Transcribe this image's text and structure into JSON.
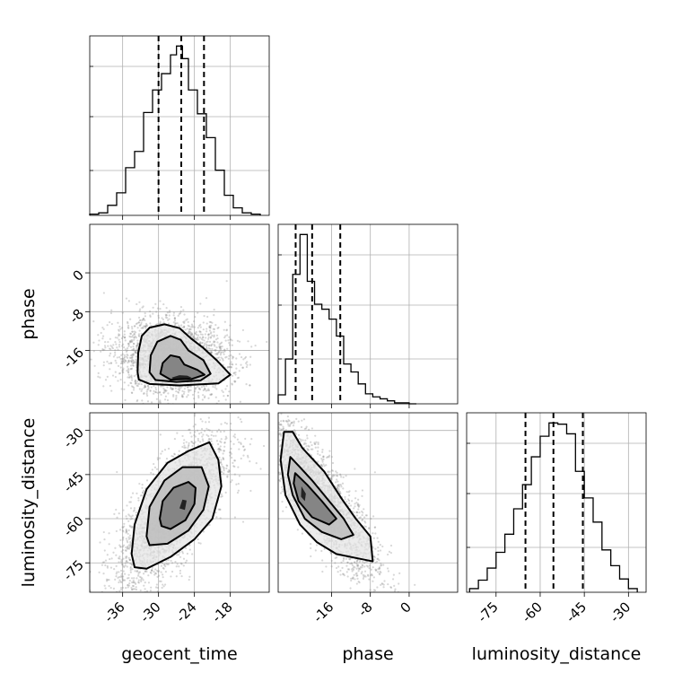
{
  "chart_data": {
    "type": "corner",
    "grid": true,
    "parameters": [
      {
        "name": "geocent_time",
        "range": [
          -41.5,
          -11.5
        ],
        "ticks": [
          -36,
          -30,
          -24,
          -18
        ],
        "quantiles": [
          -30.0,
          -26.2,
          -22.4
        ]
      },
      {
        "name": "phase",
        "range": [
          -27.0,
          10.0
        ],
        "ticks": [
          -16,
          -8,
          0
        ],
        "quantiles": [
          -23.4,
          -20.0,
          -14.2
        ]
      },
      {
        "name": "luminosity_distance",
        "range": [
          -85.0,
          -24.0
        ],
        "ticks": [
          -75,
          -60,
          -45,
          -30
        ],
        "quantiles": [
          -65.0,
          -55.5,
          -45.5
        ]
      }
    ],
    "histograms": [
      {
        "parameter": "geocent_time",
        "bin_edges": [
          -41.5,
          -40.0,
          -38.5,
          -37.0,
          -35.5,
          -34.0,
          -32.5,
          -31.0,
          -29.5,
          -28.0,
          -27.0,
          -26.0,
          -25.0,
          -23.5,
          -22.0,
          -20.5,
          -19.0,
          -17.5,
          -16.0,
          -14.5,
          -13.0
        ],
        "counts": [
          1,
          2,
          8,
          18,
          38,
          51,
          82,
          100,
          113,
          128,
          135,
          125,
          100,
          81,
          62,
          36,
          16,
          6,
          2,
          1
        ]
      },
      {
        "parameter": "phase",
        "bin_edges": [
          -27.0,
          -25.5,
          -24.0,
          -22.5,
          -21.0,
          -19.5,
          -18.0,
          -16.5,
          -15.0,
          -13.5,
          -12.0,
          -10.5,
          -9.0,
          -7.5,
          -6.0,
          -4.5,
          -3.0,
          -1.5,
          0.0,
          1.5
        ],
        "counts": [
          9,
          45,
          130,
          170,
          123,
          100,
          95,
          85,
          68,
          40,
          32,
          20,
          10,
          7,
          5,
          3,
          1,
          1,
          0
        ]
      },
      {
        "parameter": "luminosity_distance",
        "bin_edges": [
          -84.0,
          -81.0,
          -78.0,
          -75.0,
          -72.0,
          -69.0,
          -66.0,
          -63.0,
          -60.0,
          -57.0,
          -54.0,
          -51.0,
          -48.0,
          -45.0,
          -42.0,
          -39.0,
          -36.0,
          -33.0,
          -30.0,
          -27.0
        ],
        "counts": [
          3,
          10,
          20,
          33,
          48,
          69,
          89,
          112,
          129,
          140,
          139,
          131,
          100,
          78,
          58,
          35,
          22,
          11,
          3
        ]
      }
    ],
    "scatter_pairs": [
      {
        "x": "geocent_time",
        "y": "phase",
        "center": [
          -26.5,
          -20.5
        ],
        "contours": [
          {
            "points": [
              [
                -33.5,
                -20.5
              ],
              [
                -33.4,
                -16.5
              ],
              [
                -32.8,
                -13.0
              ],
              [
                -31.5,
                -11.3
              ],
              [
                -29.0,
                -10.6
              ],
              [
                -26.5,
                -11.4
              ],
              [
                -24.5,
                -13.6
              ],
              [
                -22.5,
                -15.5
              ],
              [
                -20.3,
                -18.0
              ],
              [
                -18.0,
                -21.0
              ],
              [
                -20.0,
                -22.8
              ],
              [
                -26.5,
                -23.2
              ],
              [
                -31.5,
                -22.9
              ],
              [
                -33.3,
                -22.0
              ],
              [
                -33.5,
                -20.5
              ]
            ]
          },
          {
            "points": [
              [
                -31.5,
                -20.5
              ],
              [
                -31.3,
                -17.0
              ],
              [
                -30.2,
                -14.2
              ],
              [
                -28.0,
                -13.0
              ],
              [
                -26.3,
                -13.8
              ],
              [
                -25.0,
                -16.0
              ],
              [
                -22.5,
                -18.0
              ],
              [
                -21.3,
                -20.8
              ],
              [
                -23.0,
                -22.2
              ],
              [
                -27.0,
                -22.5
              ],
              [
                -30.5,
                -22.1
              ],
              [
                -31.5,
                -20.5
              ]
            ]
          },
          {
            "points": [
              [
                -29.7,
                -20.8
              ],
              [
                -29.3,
                -18.6
              ],
              [
                -28.0,
                -17.0
              ],
              [
                -26.5,
                -17.4
              ],
              [
                -25.7,
                -18.9
              ],
              [
                -23.5,
                -20.0
              ],
              [
                -22.3,
                -21.0
              ],
              [
                -24.5,
                -21.9
              ],
              [
                -28.0,
                -22.0
              ],
              [
                -29.7,
                -20.8
              ]
            ]
          },
          {
            "points": [
              [
                -27.8,
                -21.6
              ],
              [
                -26.5,
                -21.1
              ],
              [
                -25.2,
                -21.2
              ],
              [
                -24.5,
                -21.6
              ],
              [
                -25.5,
                -22.0
              ],
              [
                -27.5,
                -21.9
              ],
              [
                -27.8,
                -21.6
              ]
            ]
          }
        ]
      },
      {
        "x": "geocent_time",
        "y": "luminosity_distance",
        "center": [
          -26.0,
          -55.0
        ],
        "contours": [
          {
            "points": [
              [
                -34.5,
                -72.0
              ],
              [
                -34.0,
                -62.0
              ],
              [
                -32.0,
                -50.0
              ],
              [
                -28.5,
                -41.0
              ],
              [
                -25.0,
                -37.0
              ],
              [
                -21.5,
                -34.0
              ],
              [
                -20.0,
                -40.0
              ],
              [
                -19.5,
                -49.0
              ],
              [
                -21.0,
                -60.0
              ],
              [
                -24.0,
                -67.0
              ],
              [
                -28.0,
                -73.0
              ],
              [
                -32.0,
                -77.0
              ],
              [
                -34.0,
                -76.5
              ],
              [
                -34.5,
                -72.0
              ]
            ]
          },
          {
            "points": [
              [
                -32.0,
                -66.0
              ],
              [
                -31.5,
                -56.0
              ],
              [
                -29.0,
                -47.0
              ],
              [
                -26.0,
                -42.5
              ],
              [
                -22.8,
                -42.5
              ],
              [
                -21.6,
                -49.0
              ],
              [
                -22.5,
                -57.0
              ],
              [
                -25.0,
                -64.0
              ],
              [
                -28.5,
                -68.5
              ],
              [
                -31.5,
                -69.0
              ],
              [
                -32.0,
                -66.0
              ]
            ]
          },
          {
            "points": [
              [
                -29.8,
                -60.0
              ],
              [
                -29.3,
                -54.0
              ],
              [
                -27.5,
                -49.5
              ],
              [
                -25.0,
                -47.5
              ],
              [
                -23.8,
                -49.5
              ],
              [
                -24.0,
                -55.0
              ],
              [
                -25.5,
                -60.5
              ],
              [
                -28.0,
                -63.5
              ],
              [
                -29.5,
                -62.5
              ],
              [
                -29.8,
                -60.0
              ]
            ]
          },
          {
            "points": [
              [
                -26.5,
                -56.5
              ],
              [
                -26.0,
                -53.5
              ],
              [
                -25.3,
                -53.8
              ],
              [
                -25.6,
                -57.0
              ],
              [
                -26.5,
                -56.5
              ]
            ]
          }
        ]
      },
      {
        "x": "phase",
        "y": "luminosity_distance",
        "center": [
          -20.0,
          -55.0
        ],
        "contours": [
          {
            "points": [
              [
                -25.8,
                -30.5
              ],
              [
                -24.0,
                -30.5
              ],
              [
                -22.0,
                -36.0
              ],
              [
                -17.5,
                -44.0
              ],
              [
                -14.0,
                -53.0
              ],
              [
                -11.0,
                -60.0
              ],
              [
                -8.0,
                -66.0
              ],
              [
                -7.5,
                -74.5
              ],
              [
                -10.5,
                -73.5
              ],
              [
                -15.0,
                -72.0
              ],
              [
                -19.0,
                -68.0
              ],
              [
                -22.5,
                -62.0
              ],
              [
                -25.5,
                -52.0
              ],
              [
                -26.5,
                -40.0
              ],
              [
                -25.8,
                -30.5
              ]
            ]
          },
          {
            "points": [
              [
                -24.5,
                -39.0
              ],
              [
                -22.5,
                -42.5
              ],
              [
                -20.0,
                -47.0
              ],
              [
                -16.5,
                -54.0
              ],
              [
                -13.5,
                -60.0
              ],
              [
                -11.5,
                -65.5
              ],
              [
                -14.0,
                -67.0
              ],
              [
                -18.0,
                -64.5
              ],
              [
                -21.5,
                -60.0
              ],
              [
                -24.0,
                -52.0
              ],
              [
                -25.0,
                -45.0
              ],
              [
                -24.5,
                -39.0
              ]
            ]
          },
          {
            "points": [
              [
                -23.5,
                -44.5
              ],
              [
                -21.0,
                -48.5
              ],
              [
                -18.0,
                -54.0
              ],
              [
                -15.0,
                -60.0
              ],
              [
                -16.5,
                -62.0
              ],
              [
                -20.0,
                -59.5
              ],
              [
                -22.8,
                -54.0
              ],
              [
                -23.8,
                -48.0
              ],
              [
                -23.5,
                -44.5
              ]
            ]
          },
          {
            "points": [
              [
                -22.2,
                -49.0
              ],
              [
                -21.3,
                -51.5
              ],
              [
                -21.5,
                -54.0
              ],
              [
                -22.3,
                -52.5
              ],
              [
                -22.2,
                -49.0
              ]
            ]
          }
        ]
      }
    ]
  }
}
